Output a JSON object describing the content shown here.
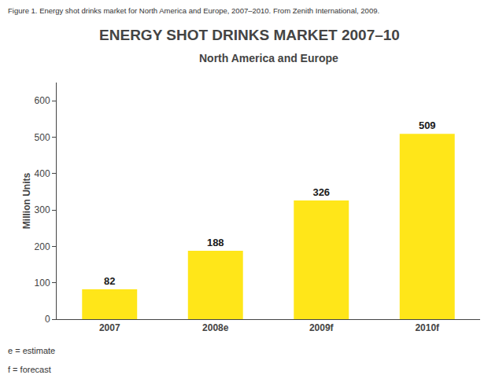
{
  "chart_data": {
    "type": "bar",
    "title": "ENERGY SHOT DRINKS MARKET 2007–10",
    "subtitle": "North America and Europe",
    "ylabel": "Million Units",
    "categories": [
      "2007",
      "2008e",
      "2009f",
      "2010f"
    ],
    "values": [
      82,
      188,
      326,
      509
    ],
    "color": "#FFE619",
    "ylim": [
      0,
      650
    ],
    "yticks": [
      0,
      100,
      200,
      300,
      400,
      500,
      600
    ],
    "grid": false,
    "data_labels": true,
    "annotations": [
      "Figure 1. Energy shot drinks market for North America and Europe, 2007–2010. From Zenith International, 2009.",
      "e = estimate",
      "f = forecast"
    ]
  }
}
